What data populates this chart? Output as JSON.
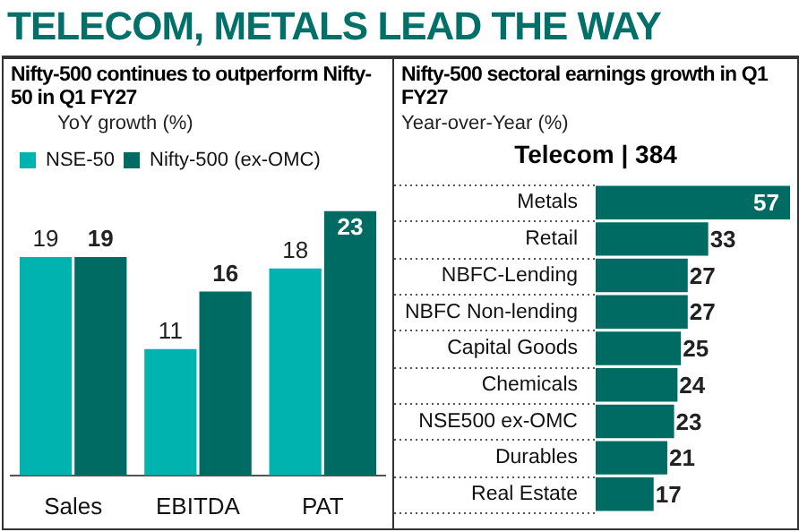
{
  "chart_data": [
    {
      "type": "bar",
      "title": "TELECOM, METALS LEAD THE WAY",
      "subtitle": "Nifty-500 continues to outperform Nifty-50 in Q1 FY27",
      "ylabel": "YoY growth (%)",
      "categories": [
        "Sales",
        "EBITDA",
        "PAT"
      ],
      "series": [
        {
          "name": "NSE-50",
          "color": "#00b3ae",
          "values": [
            19,
            11,
            18
          ]
        },
        {
          "name": "Nifty-500 (ex-OMC)",
          "color": "#006b63",
          "values": [
            19,
            16,
            23
          ]
        }
      ],
      "tick_labels": "x",
      "legend": "top left",
      "data_labels": true
    },
    {
      "type": "bar",
      "orientation": "horizontal",
      "title": "Nifty-500 sectoral earnings growth in Q1 FY27",
      "subtitle": "Year-over-Year (%)",
      "annotations": [
        "Telecom | 384"
      ],
      "categories": [
        "Metals",
        "Retail",
        "NBFC-Lending",
        "NBFC Non-lending",
        "Capital Goods",
        "Chemicals",
        "NSE500 ex-OMC",
        "Durables",
        "Real Estate"
      ],
      "values": [
        57,
        33,
        27,
        27,
        25,
        24,
        23,
        21,
        17
      ],
      "color": "#006b63",
      "xlim": [
        0,
        57
      ],
      "tick_labels": "y",
      "grid": "y",
      "data_labels": true
    }
  ]
}
